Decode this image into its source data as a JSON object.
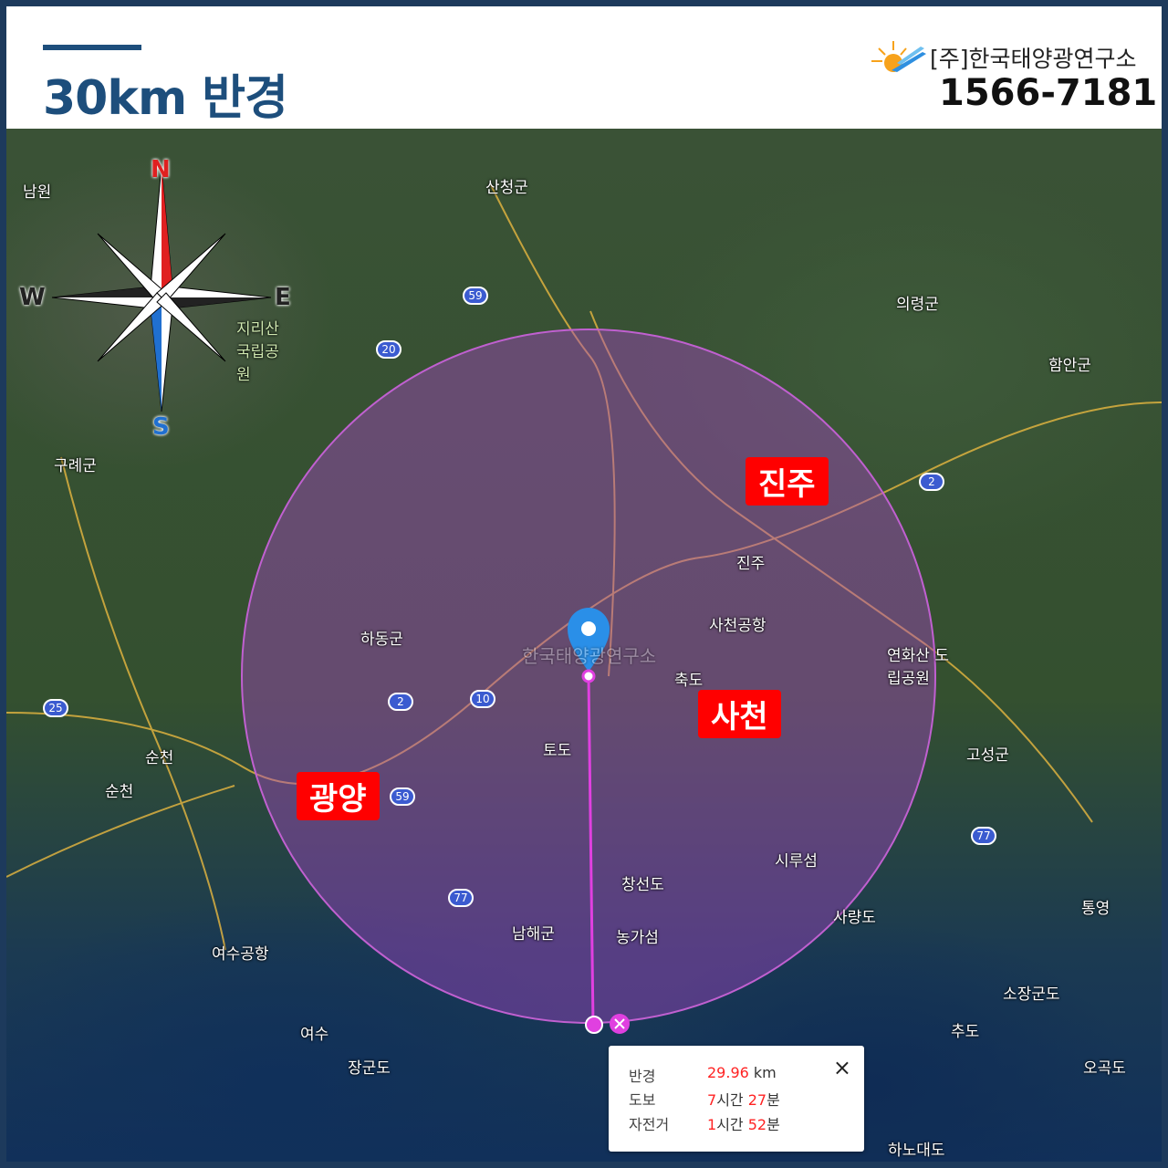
{
  "header": {
    "title": "30km 반경",
    "company": "[주]한국태양광연구소",
    "phone": "1566-7181"
  },
  "compass": {
    "n": "N",
    "s": "S",
    "e": "E",
    "w": "W"
  },
  "cities": [
    {
      "name": "진주"
    },
    {
      "name": "사천"
    },
    {
      "name": "광양"
    }
  ],
  "places": [
    "남원",
    "산청군",
    "의령군",
    "함안군",
    "지리산 국립공원",
    "구례군",
    "하동군",
    "진주",
    "사천공항",
    "연화산 도립공원",
    "축도",
    "순천",
    "순천",
    "토도",
    "고성군",
    "창선도",
    "시루섬",
    "남해군",
    "농가섬",
    "사량도",
    "통영",
    "여수공항",
    "여수",
    "장군도",
    "소장군도",
    "추도",
    "오곡도",
    "하노대도"
  ],
  "routes": [
    "59",
    "20",
    "2",
    "10",
    "25",
    "2",
    "59",
    "77",
    "77"
  ],
  "watermark": "한국태양광연구소",
  "colors": {
    "circle": "#c060d0",
    "accent": "#1d4e7c",
    "city_label": "#ff0000"
  },
  "info": {
    "rows": [
      {
        "label": "반경",
        "value": "29.96",
        "unit": " km"
      },
      {
        "label": "도보",
        "h": "7",
        "hu": "시간 ",
        "m": "27",
        "mu": "분"
      },
      {
        "label": "자전거",
        "h": "1",
        "hu": "시간 ",
        "m": "52",
        "mu": "분"
      }
    ],
    "close": "×"
  }
}
